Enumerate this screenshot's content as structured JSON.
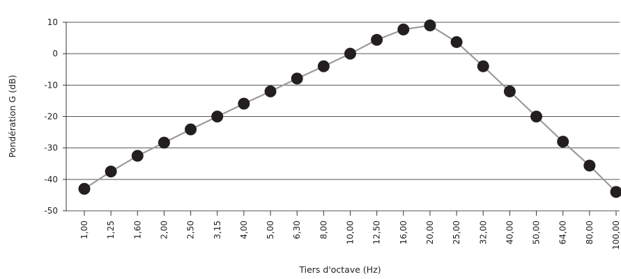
{
  "chart_data": {
    "type": "line",
    "title": "",
    "xlabel": "Tiers d'octave (Hz)",
    "ylabel": "Pondération G (dB)",
    "ylim": [
      -50,
      10
    ],
    "yticks": [
      "10",
      "0",
      "-10",
      "-20",
      "-30",
      "-40",
      "-50"
    ],
    "categories": [
      "1,00",
      "1,25",
      "1,60",
      "2,00",
      "2,50",
      "3,15",
      "4,00",
      "5,00",
      "6,30",
      "8,00",
      "10,00",
      "12,50",
      "16,00",
      "20,00",
      "25,00",
      "32,00",
      "40,00",
      "50,00",
      "64,00",
      "80,00",
      "100,00"
    ],
    "values": [
      -43,
      -37.5,
      -32.5,
      -28.3,
      -24.1,
      -20,
      -15.9,
      -12,
      -7.9,
      -4,
      0,
      4.4,
      7.7,
      9,
      3.7,
      -4,
      -12,
      -20,
      -28,
      -35.6,
      -44
    ],
    "grid": true,
    "colors": {
      "line": "#9a9a9a",
      "marker": "#231f20",
      "grid": "#555555",
      "axis": "#333333",
      "text": "#222222"
    }
  }
}
